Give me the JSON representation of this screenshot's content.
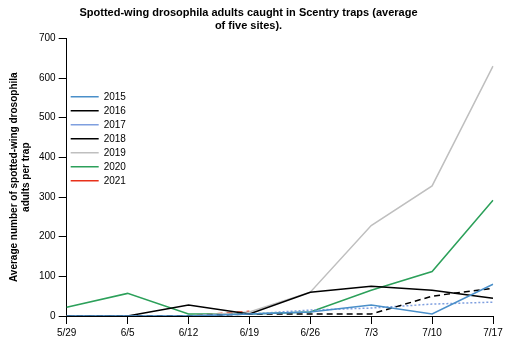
{
  "chart_data": {
    "type": "line",
    "title": [
      "Spotted-wing drosophila adults caught in Scentry traps (average",
      "of five sites)."
    ],
    "y_label": [
      "Average number of spotted-wing drosophila",
      "adults per trap"
    ],
    "categories": [
      "5/29",
      "6/5",
      "6/12",
      "6/19",
      "6/26",
      "7/3",
      "7/10",
      "7/17"
    ],
    "series": [
      {
        "name": "2015",
        "color": "#4a8fc9",
        "line_style": "solid",
        "values": [
          0,
          0,
          0,
          5,
          10,
          28,
          5,
          80
        ]
      },
      {
        "name": "2016",
        "color": "#000000",
        "line_style": "dashed",
        "values": [
          0,
          0,
          0,
          5,
          5,
          5,
          50,
          70
        ]
      },
      {
        "name": "2017",
        "color": "#7f9fdf",
        "line_style": "dotted",
        "values": [
          0,
          0,
          0,
          5,
          15,
          20,
          30,
          35
        ]
      },
      {
        "name": "2018",
        "color": "#000000",
        "line_style": "solid",
        "values": [
          0,
          0,
          28,
          5,
          60,
          75,
          65,
          45
        ]
      },
      {
        "name": "2019",
        "color": "#bfbfbf",
        "line_style": "solid",
        "values": [
          0,
          0,
          0,
          10,
          60,
          228,
          328,
          630
        ]
      },
      {
        "name": "2020",
        "color": "#2ca05a",
        "line_style": "solid",
        "values": [
          22,
          57,
          5,
          5,
          10,
          65,
          112,
          292
        ]
      },
      {
        "name": "2021",
        "color": "#e8311a",
        "line_style": "dashed",
        "values": [
          0,
          0,
          0,
          12,
          null,
          null,
          null,
          null
        ]
      }
    ],
    "ylim": [
      0,
      700
    ],
    "yticks": [
      0,
      100,
      200,
      300,
      400,
      500,
      600,
      700
    ],
    "grid": false,
    "legend": "left",
    "marker": "none"
  }
}
